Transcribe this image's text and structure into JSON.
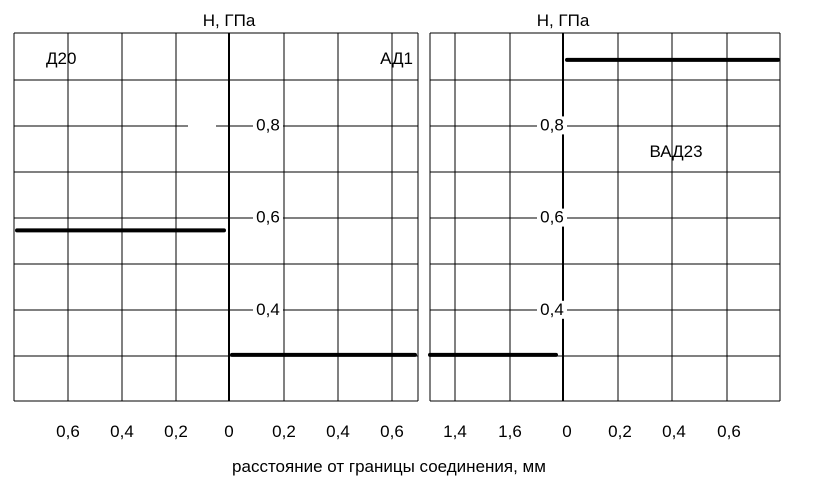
{
  "chart_data": {
    "type": "line",
    "xlabel": "расстояние от границы соединения, мм",
    "panels": [
      {
        "ylabel": "H, ГПа",
        "yticks": [
          "0,4",
          "0,6",
          "0,8"
        ],
        "ytick_values": [
          0.4,
          0.6,
          0.8
        ],
        "ylim": [
          0.2,
          1.0
        ],
        "left_xticks": [
          "0,6",
          "0,4",
          "0,2"
        ],
        "left_xtick_values": [
          0.6,
          0.4,
          0.2
        ],
        "right_xticks": [
          "0",
          "0,2",
          "0,4",
          "0,6"
        ],
        "right_xtick_values": [
          0,
          0.2,
          0.4,
          0.6
        ],
        "region_labels": [
          "Д20",
          "АД1"
        ],
        "series": [
          {
            "side": "left",
            "x": [
              0.8,
              0.0
            ],
            "y": [
              0.57,
              0.57
            ]
          },
          {
            "side": "right",
            "x": [
              0.0,
              0.7
            ],
            "y": [
              0.3,
              0.3
            ]
          }
        ]
      },
      {
        "ylabel": "H, ГПа",
        "yticks": [
          "0,4",
          "0,6",
          "0,8"
        ],
        "ytick_values": [
          0.4,
          0.6,
          0.8
        ],
        "ylim": [
          0.2,
          1.0
        ],
        "left_xticks": [
          "1,4",
          "1,6"
        ],
        "left_xtick_values": [
          1.4,
          1.6
        ],
        "right_xticks": [
          "0",
          "0,2",
          "0,4",
          "0,6"
        ],
        "right_xtick_values": [
          0,
          0.2,
          0.4,
          0.6
        ],
        "region_labels": [
          "ВАД23"
        ],
        "series": [
          {
            "side": "left",
            "x": [
              1.3,
              1.8
            ],
            "y": [
              0.3,
              0.3
            ]
          },
          {
            "side": "right",
            "x": [
              0.0,
              0.8
            ],
            "y": [
              0.94,
              0.94
            ]
          }
        ]
      }
    ]
  }
}
